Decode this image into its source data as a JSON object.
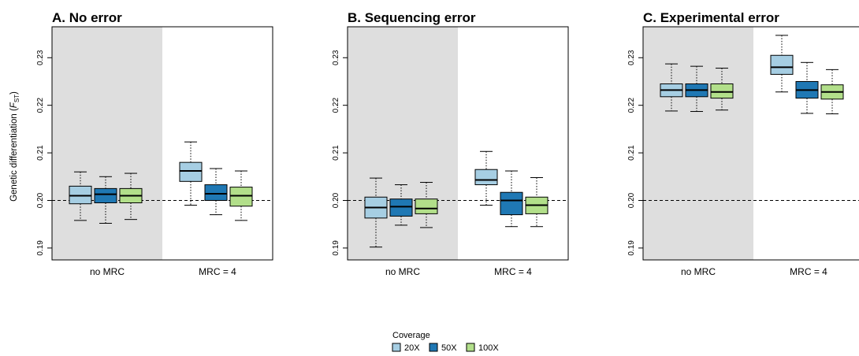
{
  "chart_data": [
    {
      "type": "box",
      "title": "A. No error",
      "ylabel": "Genetic differentiation (F_ST)",
      "ylabel_main": "Genetic differentiation (",
      "ylabel_sym": "F",
      "ylabel_sub": "ST",
      "ylabel_close": ")",
      "ylim": [
        0.1875,
        0.2365
      ],
      "yticks": [
        "0.19",
        "0.20",
        "0.21",
        "0.22",
        "0.23"
      ],
      "reference_line": 0.2,
      "groups": [
        "no MRC",
        "MRC = 4"
      ],
      "shaded_group": "no MRC",
      "series": [
        {
          "name": "20X",
          "boxes": [
            {
              "group": "no MRC",
              "min": 0.1958,
              "q1": 0.1993,
              "median": 0.201,
              "q3": 0.203,
              "max": 0.206
            },
            {
              "group": "MRC = 4",
              "min": 0.199,
              "q1": 0.204,
              "median": 0.2062,
              "q3": 0.208,
              "max": 0.2123
            }
          ]
        },
        {
          "name": "50X",
          "boxes": [
            {
              "group": "no MRC",
              "min": 0.1952,
              "q1": 0.1995,
              "median": 0.2013,
              "q3": 0.2025,
              "max": 0.205
            },
            {
              "group": "MRC = 4",
              "min": 0.197,
              "q1": 0.2,
              "median": 0.2014,
              "q3": 0.2033,
              "max": 0.2067
            }
          ]
        },
        {
          "name": "100X",
          "boxes": [
            {
              "group": "no MRC",
              "min": 0.196,
              "q1": 0.1995,
              "median": 0.201,
              "q3": 0.2025,
              "max": 0.2057
            },
            {
              "group": "MRC = 4",
              "min": 0.1958,
              "q1": 0.1988,
              "median": 0.201,
              "q3": 0.2028,
              "max": 0.2062
            }
          ]
        }
      ]
    },
    {
      "type": "box",
      "title": "B. Sequencing error",
      "ylim": [
        0.1875,
        0.2365
      ],
      "yticks": [
        "0.19",
        "0.20",
        "0.21",
        "0.22",
        "0.23"
      ],
      "reference_line": 0.2,
      "groups": [
        "no MRC",
        "MRC = 4"
      ],
      "shaded_group": "no MRC",
      "series": [
        {
          "name": "20X",
          "boxes": [
            {
              "group": "no MRC",
              "min": 0.1902,
              "q1": 0.1963,
              "median": 0.1985,
              "q3": 0.2007,
              "max": 0.2047
            },
            {
              "group": "MRC = 4",
              "min": 0.199,
              "q1": 0.2033,
              "median": 0.2043,
              "q3": 0.2065,
              "max": 0.2103
            }
          ]
        },
        {
          "name": "50X",
          "boxes": [
            {
              "group": "no MRC",
              "min": 0.1948,
              "q1": 0.1967,
              "median": 0.1987,
              "q3": 0.2003,
              "max": 0.2033
            },
            {
              "group": "MRC = 4",
              "min": 0.1945,
              "q1": 0.197,
              "median": 0.2,
              "q3": 0.2017,
              "max": 0.2062
            }
          ]
        },
        {
          "name": "100X",
          "boxes": [
            {
              "group": "no MRC",
              "min": 0.1943,
              "q1": 0.1972,
              "median": 0.1983,
              "q3": 0.2003,
              "max": 0.2038
            },
            {
              "group": "MRC = 4",
              "min": 0.1945,
              "q1": 0.1972,
              "median": 0.199,
              "q3": 0.2007,
              "max": 0.2048
            }
          ]
        }
      ]
    },
    {
      "type": "box",
      "title": "C. Experimental error",
      "ylim": [
        0.1875,
        0.2365
      ],
      "yticks": [
        "0.19",
        "0.20",
        "0.21",
        "0.22",
        "0.23"
      ],
      "reference_line": 0.2,
      "groups": [
        "no MRC",
        "MRC = 4"
      ],
      "shaded_group": "no MRC",
      "series": [
        {
          "name": "20X",
          "boxes": [
            {
              "group": "no MRC",
              "min": 0.2188,
              "q1": 0.2218,
              "median": 0.2232,
              "q3": 0.2245,
              "max": 0.2287
            },
            {
              "group": "MRC = 4",
              "min": 0.2228,
              "q1": 0.2265,
              "median": 0.228,
              "q3": 0.2305,
              "max": 0.2347
            }
          ]
        },
        {
          "name": "50X",
          "boxes": [
            {
              "group": "no MRC",
              "min": 0.2187,
              "q1": 0.2218,
              "median": 0.2232,
              "q3": 0.2245,
              "max": 0.2282
            },
            {
              "group": "MRC = 4",
              "min": 0.2183,
              "q1": 0.2215,
              "median": 0.2232,
              "q3": 0.225,
              "max": 0.229
            }
          ]
        },
        {
          "name": "100X",
          "boxes": [
            {
              "group": "no MRC",
              "min": 0.219,
              "q1": 0.2215,
              "median": 0.2228,
              "q3": 0.2245,
              "max": 0.2278
            },
            {
              "group": "MRC = 4",
              "min": 0.2182,
              "q1": 0.2213,
              "median": 0.2228,
              "q3": 0.2243,
              "max": 0.2275
            }
          ]
        }
      ]
    }
  ],
  "legend": {
    "title": "Coverage",
    "items": [
      {
        "label": "20X",
        "color": "#a6cee3"
      },
      {
        "label": "50X",
        "color": "#1f78b4"
      },
      {
        "label": "100X",
        "color": "#b2df8a"
      }
    ],
    "placement": "bottom-center"
  },
  "colors": {
    "shade": "#dedede",
    "reference_line": "#000000"
  }
}
